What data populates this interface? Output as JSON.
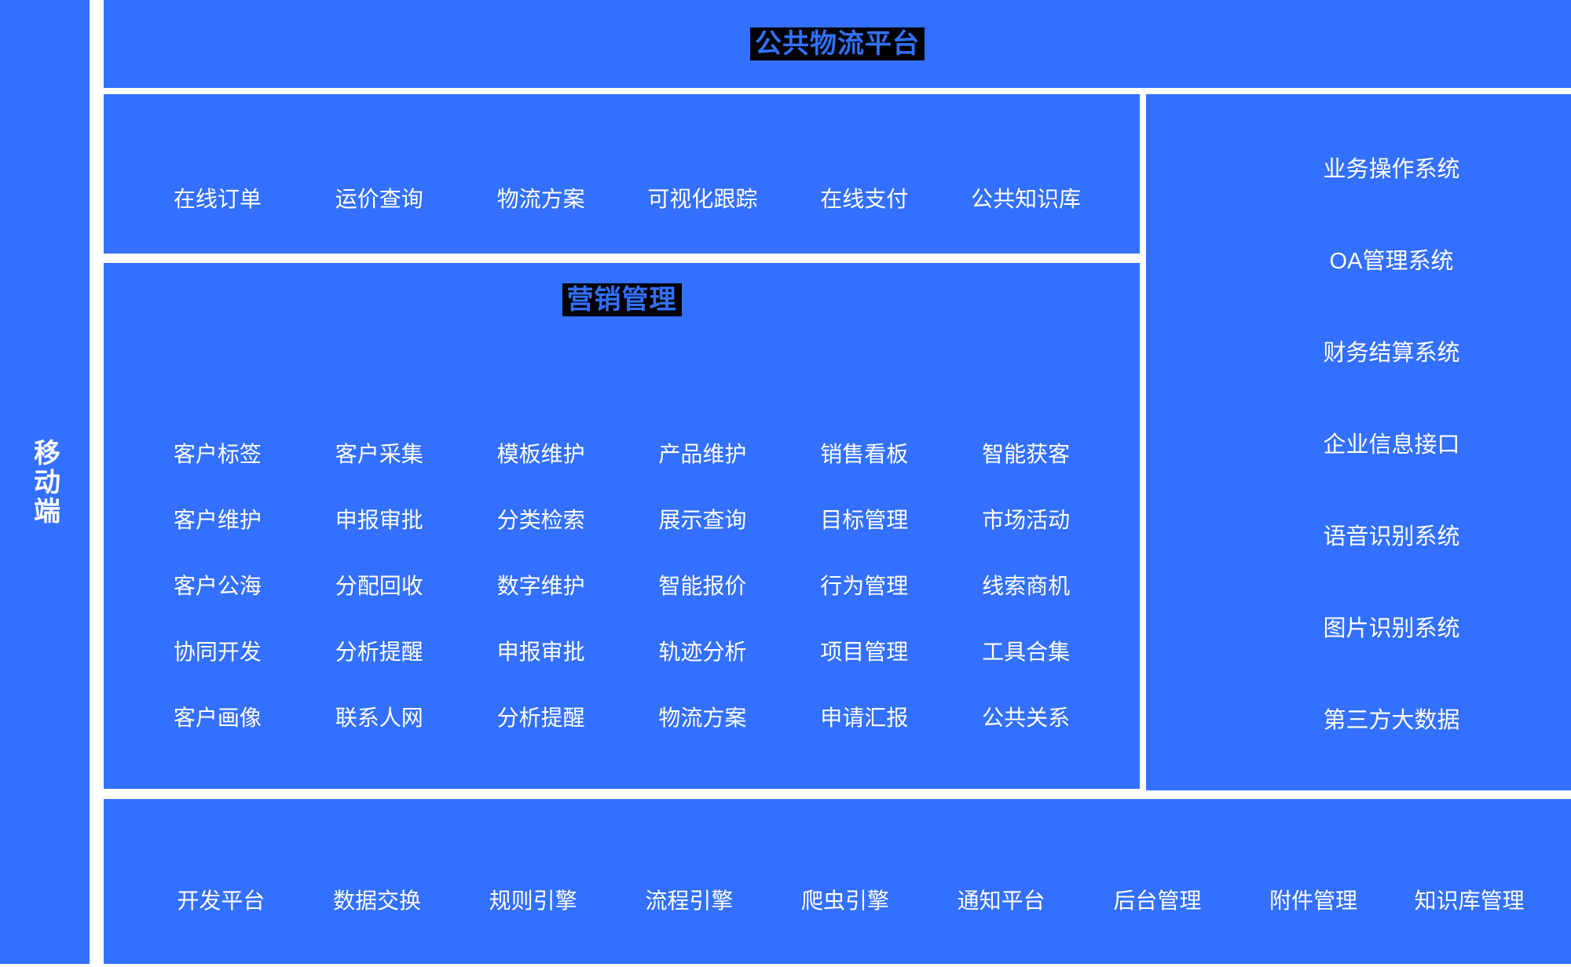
{
  "colors": {
    "panel_blue": "#3370FF",
    "title_bg_black": "#000000",
    "label_white": "#FFFFFF",
    "page_bg": "#FFFFFF"
  },
  "mobile_bar": {
    "label": "移动端"
  },
  "top_banner": {
    "title": "公共物流平台"
  },
  "services_row": {
    "items": [
      "在线订单",
      "运价查询",
      "物流方案",
      "可视化跟踪",
      "在线支付",
      "公共知识库"
    ]
  },
  "marketing": {
    "title": "营销管理",
    "items": [
      "客户标签",
      "客户采集",
      "模板维护",
      "产品维护",
      "销售看板",
      "智能获客",
      "客户维护",
      "申报审批",
      "分类检索",
      "展示查询",
      "目标管理",
      "市场活动",
      "客户公海",
      "分配回收",
      "数字维护",
      "智能报价",
      "行为管理",
      "线索商机",
      "协同开发",
      "分析提醒",
      "申报审批",
      "轨迹分析",
      "项目管理",
      "工具合集",
      "客户画像",
      "联系人网",
      "分析提醒",
      "物流方案",
      "申请汇报",
      "公共关系"
    ]
  },
  "systems_column": {
    "items": [
      "业务操作系统",
      "OA管理系统",
      "财务结算系统",
      "企业信息接口",
      "语音识别系统",
      "图片识别系统",
      "第三方大数据"
    ]
  },
  "platform_row": {
    "items": [
      "开发平台",
      "数据交换",
      "规则引擎",
      "流程引擎",
      "爬虫引擎",
      "通知平台",
      "后台管理",
      "附件管理",
      "知识库管理"
    ]
  }
}
